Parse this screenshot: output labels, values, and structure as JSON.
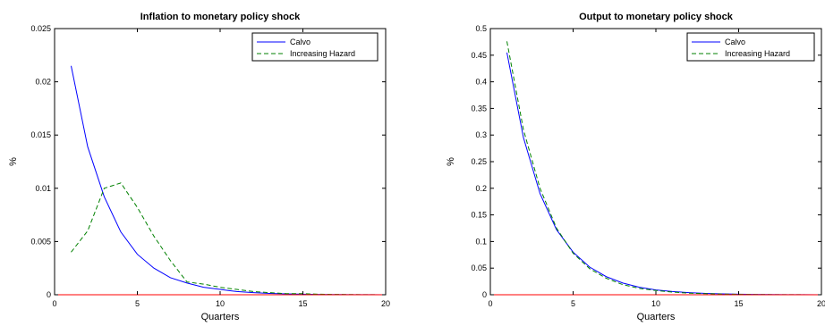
{
  "chart_data": [
    {
      "type": "line",
      "title": "Inflation to monetary policy shock",
      "xlabel": "Quarters",
      "ylabel": "%",
      "xlim": [
        0,
        20
      ],
      "ylim": [
        0,
        0.025
      ],
      "xticks": [
        0,
        5,
        10,
        15,
        20
      ],
      "xtick_labels": [
        "0",
        "5",
        "10",
        "15",
        "20"
      ],
      "yticks": [
        0,
        0.005,
        0.01,
        0.015,
        0.02,
        0.025
      ],
      "ytick_labels": [
        "0",
        "0.005",
        "0.01",
        "0.015",
        "0.02",
        "0.025"
      ],
      "grid": false,
      "legend_position": "top-right",
      "x": [
        1,
        2,
        3,
        4,
        5,
        6,
        7,
        8,
        9,
        10,
        11,
        12,
        13,
        14,
        15,
        16,
        17,
        18,
        19,
        20
      ],
      "series": [
        {
          "name": "Calvo",
          "color": "#0000ff",
          "dash": "solid",
          "values": [
            0.0215,
            0.0139,
            0.0092,
            0.0059,
            0.0038,
            0.0025,
            0.0016,
            0.0011,
            0.0007,
            0.0005,
            0.0003,
            0.0002,
            0.00013,
            8e-05,
            5e-05,
            3e-05,
            2e-05,
            1e-05,
            1e-05,
            0.0
          ]
        },
        {
          "name": "Increasing Hazard",
          "color": "#008000",
          "dash": "dashed",
          "values": [
            0.004,
            0.006,
            0.01,
            0.0105,
            0.0082,
            0.0055,
            0.0032,
            0.0012,
            0.001,
            0.0007,
            0.0005,
            0.0003,
            0.0002,
            0.0001,
            0.0001,
            5e-05,
            3e-05,
            2e-05,
            1e-05,
            0.0
          ]
        },
        {
          "name": "",
          "color": "#ff0000",
          "dash": "solid",
          "values": [
            0,
            0,
            0,
            0,
            0,
            0,
            0,
            0,
            0,
            0,
            0,
            0,
            0,
            0,
            0,
            0,
            0,
            0,
            0,
            0
          ]
        }
      ]
    },
    {
      "type": "line",
      "title": "Output to monetary policy shock",
      "xlabel": "Quarters",
      "ylabel": "%",
      "xlim": [
        0,
        20
      ],
      "ylim": [
        0,
        0.5
      ],
      "xticks": [
        0,
        5,
        10,
        15,
        20
      ],
      "xtick_labels": [
        "0",
        "5",
        "10",
        "15",
        "20"
      ],
      "yticks": [
        0,
        0.05,
        0.1,
        0.15,
        0.2,
        0.25,
        0.3,
        0.35,
        0.4,
        0.45,
        0.5
      ],
      "ytick_labels": [
        "0",
        "0.05",
        "0.1",
        "0.15",
        "0.2",
        "0.25",
        "0.3",
        "0.35",
        "0.4",
        "0.45",
        "0.5"
      ],
      "grid": false,
      "legend_position": "top-right",
      "x": [
        1,
        2,
        3,
        4,
        5,
        6,
        7,
        8,
        9,
        10,
        11,
        12,
        13,
        14,
        15,
        16,
        17,
        18,
        19,
        20
      ],
      "series": [
        {
          "name": "Calvo",
          "color": "#0000ff",
          "dash": "solid",
          "values": [
            0.455,
            0.295,
            0.19,
            0.122,
            0.08,
            0.052,
            0.034,
            0.022,
            0.014,
            0.009,
            0.006,
            0.004,
            0.0025,
            0.0016,
            0.001,
            0.0007,
            0.0004,
            0.0003,
            0.0002,
            0.0001
          ]
        },
        {
          "name": "Increasing Hazard",
          "color": "#008000",
          "dash": "dashed",
          "values": [
            0.476,
            0.31,
            0.2,
            0.125,
            0.078,
            0.049,
            0.031,
            0.019,
            0.012,
            0.008,
            0.005,
            0.003,
            0.002,
            0.0013,
            0.0008,
            0.0005,
            0.0003,
            0.0002,
            0.0001,
            0.0001
          ]
        },
        {
          "name": "",
          "color": "#ff0000",
          "dash": "solid",
          "values": [
            0,
            0,
            0,
            0,
            0,
            0,
            0,
            0,
            0,
            0,
            0,
            0,
            0,
            0,
            0,
            0,
            0,
            0,
            0,
            0
          ]
        }
      ]
    }
  ]
}
